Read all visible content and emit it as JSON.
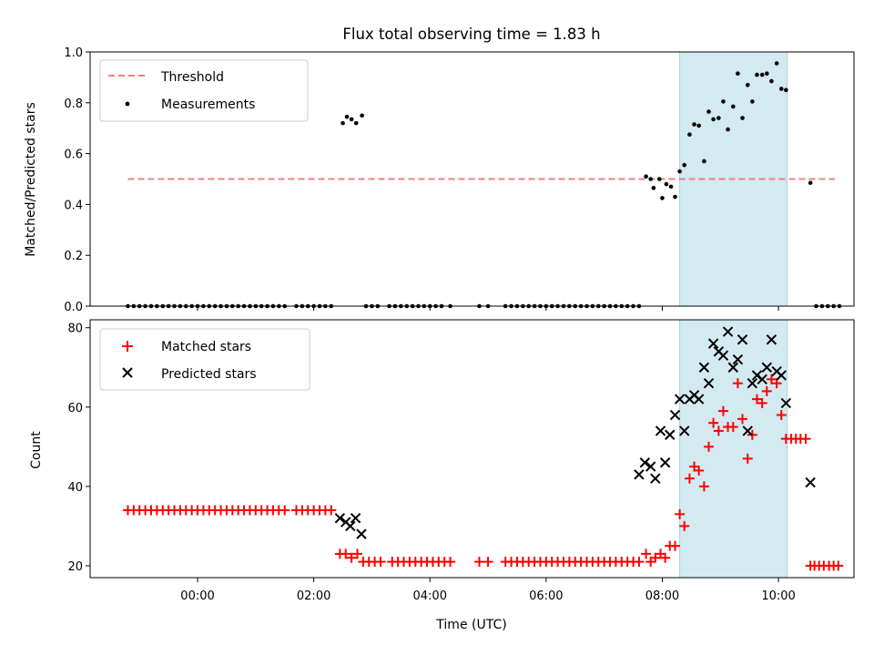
{
  "chart_data": [
    {
      "type": "scatter",
      "title": "Flux total observing time = 1.83 h",
      "xlabel": "",
      "ylabel": "Matched/Predicted stars",
      "ylim": [
        0,
        1
      ],
      "yticks": [
        "0.0",
        "0.2",
        "0.4",
        "0.6",
        "0.8",
        "1.0"
      ],
      "xlim_hours": [
        -1.85,
        11.3
      ],
      "x_tick_hours": [
        0,
        2,
        4,
        6,
        8,
        10
      ],
      "x_tick_labels": [
        "00:00",
        "02:00",
        "04:00",
        "06:00",
        "08:00",
        "10:00"
      ],
      "grid": false,
      "legend": {
        "placement": "upper-left",
        "entries": [
          "Threshold",
          "Measurements"
        ]
      },
      "threshold": {
        "name": "Threshold",
        "y": 0.5,
        "x_range_hours": [
          -1.2,
          10.97
        ],
        "color": "#f08080"
      },
      "highlight_hours": [
        8.3,
        10.15
      ],
      "highlight_color": "#d3eaf0",
      "series": [
        {
          "name": "Measurements",
          "color": "#000000",
          "x_hours": [
            -1.2,
            -1.1,
            -1.0,
            -0.9,
            -0.8,
            -0.7,
            -0.6,
            -0.5,
            -0.4,
            -0.3,
            -0.2,
            -0.1,
            0.0,
            0.1,
            0.2,
            0.3,
            0.4,
            0.5,
            0.6,
            0.7,
            0.8,
            0.9,
            1.0,
            1.1,
            1.2,
            1.3,
            1.4,
            1.5,
            1.7,
            1.8,
            1.9,
            2.0,
            2.1,
            2.2,
            2.3,
            2.5,
            2.57,
            2.65,
            2.73,
            2.83,
            2.9,
            3.0,
            3.1,
            3.3,
            3.4,
            3.5,
            3.6,
            3.7,
            3.8,
            3.9,
            4.0,
            4.1,
            4.2,
            4.35,
            4.85,
            5.0,
            5.3,
            5.4,
            5.5,
            5.6,
            5.7,
            5.8,
            5.9,
            6.0,
            6.1,
            6.2,
            6.3,
            6.4,
            6.5,
            6.6,
            6.7,
            6.8,
            6.9,
            7.0,
            7.1,
            7.2,
            7.3,
            7.4,
            7.5,
            7.6,
            7.72,
            7.8,
            7.85,
            7.95,
            8.0,
            8.07,
            8.15,
            8.22,
            8.3,
            8.38,
            8.47,
            8.55,
            8.63,
            8.72,
            8.8,
            8.88,
            8.97,
            9.05,
            9.13,
            9.22,
            9.3,
            9.38,
            9.47,
            9.55,
            9.63,
            9.72,
            9.8,
            9.88,
            9.97,
            10.05,
            10.13,
            10.55,
            10.65,
            10.75,
            10.85,
            10.95,
            11.05
          ],
          "y": [
            0,
            0,
            0,
            0,
            0,
            0,
            0,
            0,
            0,
            0,
            0,
            0,
            0,
            0,
            0,
            0,
            0,
            0,
            0,
            0,
            0,
            0,
            0,
            0,
            0,
            0,
            0,
            0,
            0,
            0,
            0,
            0,
            0,
            0,
            0,
            0.72,
            0.745,
            0.735,
            0.72,
            0.75,
            0,
            0,
            0,
            0,
            0,
            0,
            0,
            0,
            0,
            0,
            0,
            0,
            0,
            0,
            0,
            0,
            0,
            0,
            0,
            0,
            0,
            0,
            0,
            0,
            0,
            0,
            0,
            0,
            0,
            0,
            0,
            0,
            0,
            0,
            0,
            0,
            0,
            0,
            0,
            0,
            0.51,
            0.5,
            0.465,
            0.5,
            0.425,
            0.48,
            0.47,
            0.43,
            0.53,
            0.555,
            0.675,
            0.715,
            0.71,
            0.57,
            0.765,
            0.735,
            0.74,
            0.805,
            0.695,
            0.785,
            0.915,
            0.74,
            0.87,
            0.805,
            0.91,
            0.91,
            0.915,
            0.885,
            0.955,
            0.855,
            0.85,
            0.485,
            0,
            0,
            0,
            0,
            0
          ]
        }
      ]
    },
    {
      "type": "scatter",
      "title": "",
      "xlabel": "Time (UTC)",
      "ylabel": "Count",
      "ylim": [
        17,
        82
      ],
      "yticks": [
        "20",
        "40",
        "60",
        "80"
      ],
      "xlim_hours": [
        -1.85,
        11.3
      ],
      "x_tick_hours": [
        0,
        2,
        4,
        6,
        8,
        10
      ],
      "x_tick_labels": [
        "00:00",
        "02:00",
        "04:00",
        "06:00",
        "08:00",
        "10:00"
      ],
      "grid": false,
      "legend": {
        "placement": "upper-left",
        "entries": [
          "Matched stars",
          "Predicted stars"
        ]
      },
      "highlight_hours": [
        8.3,
        10.15
      ],
      "highlight_color": "#d3eaf0",
      "series": [
        {
          "name": "Matched stars",
          "marker": "plus",
          "color": "#ff0000",
          "x_hours": [
            -1.2,
            -1.1,
            -1.0,
            -0.9,
            -0.8,
            -0.7,
            -0.6,
            -0.5,
            -0.4,
            -0.3,
            -0.2,
            -0.1,
            0.0,
            0.1,
            0.2,
            0.3,
            0.4,
            0.5,
            0.6,
            0.7,
            0.8,
            0.9,
            1.0,
            1.1,
            1.2,
            1.3,
            1.4,
            1.5,
            1.7,
            1.8,
            1.9,
            2.0,
            2.1,
            2.2,
            2.3,
            2.45,
            2.55,
            2.65,
            2.75,
            2.85,
            2.95,
            3.05,
            3.15,
            3.35,
            3.45,
            3.55,
            3.65,
            3.75,
            3.85,
            3.95,
            4.05,
            4.15,
            4.25,
            4.35,
            4.85,
            5.0,
            5.3,
            5.4,
            5.5,
            5.6,
            5.7,
            5.8,
            5.9,
            6.0,
            6.1,
            6.2,
            6.3,
            6.4,
            6.5,
            6.6,
            6.7,
            6.8,
            6.9,
            7.0,
            7.1,
            7.2,
            7.3,
            7.4,
            7.5,
            7.6,
            7.72,
            7.8,
            7.88,
            7.97,
            8.05,
            8.13,
            8.22,
            8.3,
            8.38,
            8.47,
            8.55,
            8.63,
            8.72,
            8.8,
            8.88,
            8.97,
            9.05,
            9.13,
            9.22,
            9.3,
            9.38,
            9.47,
            9.55,
            9.63,
            9.72,
            9.8,
            9.88,
            9.97,
            10.05,
            10.13,
            10.22,
            10.3,
            10.38,
            10.47,
            10.55,
            10.62,
            10.7,
            10.78,
            10.87,
            10.95,
            11.03
          ],
          "y": [
            34,
            34,
            34,
            34,
            34,
            34,
            34,
            34,
            34,
            34,
            34,
            34,
            34,
            34,
            34,
            34,
            34,
            34,
            34,
            34,
            34,
            34,
            34,
            34,
            34,
            34,
            34,
            34,
            34,
            34,
            34,
            34,
            34,
            34,
            34,
            23,
            23,
            22,
            23,
            21,
            21,
            21,
            21,
            21,
            21,
            21,
            21,
            21,
            21,
            21,
            21,
            21,
            21,
            21,
            21,
            21,
            21,
            21,
            21,
            21,
            21,
            21,
            21,
            21,
            21,
            21,
            21,
            21,
            21,
            21,
            21,
            21,
            21,
            21,
            21,
            21,
            21,
            21,
            21,
            21,
            23,
            21,
            22,
            23,
            22,
            25,
            25,
            33,
            30,
            42,
            45,
            44,
            40,
            50,
            56,
            54,
            59,
            55,
            55,
            66,
            57,
            47,
            53,
            62,
            61,
            64,
            67,
            66,
            58,
            52,
            52,
            52,
            52,
            52,
            20,
            20,
            20,
            20,
            20,
            20,
            20
          ]
        },
        {
          "name": "Predicted stars",
          "marker": "x",
          "color": "#000000",
          "x_hours": [
            2.45,
            2.55,
            2.63,
            2.72,
            2.82,
            7.6,
            7.7,
            7.8,
            7.88,
            7.97,
            8.05,
            8.13,
            8.22,
            8.3,
            8.38,
            8.47,
            8.55,
            8.63,
            8.72,
            8.8,
            8.88,
            8.97,
            9.05,
            9.13,
            9.22,
            9.3,
            9.38,
            9.47,
            9.55,
            9.63,
            9.72,
            9.8,
            9.88,
            9.97,
            10.05,
            10.13,
            10.55
          ],
          "y": [
            32,
            31,
            30,
            32,
            28,
            43,
            46,
            45,
            42,
            54,
            46,
            53,
            58,
            62,
            54,
            62,
            63,
            62,
            70,
            66,
            76,
            74,
            73,
            79,
            70,
            72,
            77,
            54,
            66,
            68,
            67,
            70,
            77,
            69,
            68,
            61,
            41
          ]
        }
      ]
    }
  ]
}
